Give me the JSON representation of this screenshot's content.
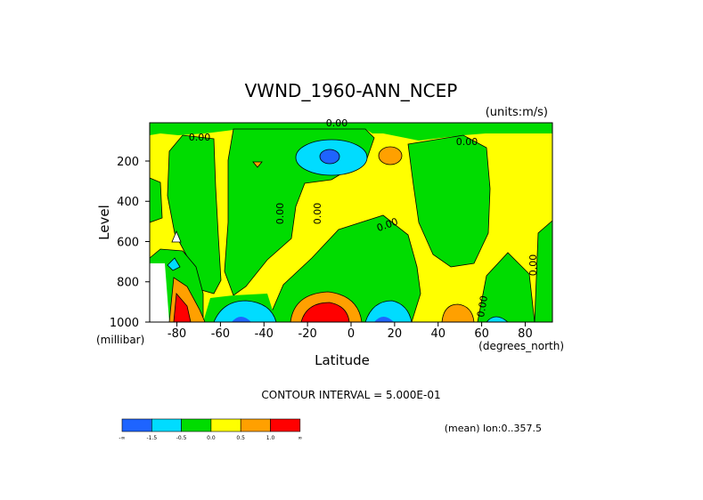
{
  "chart_data": {
    "type": "contour",
    "title": "VWND_1960-ANN_NCEP",
    "units_label": "(units:m/s)",
    "x_label": "Latitude",
    "x_unit_label": "(degrees_north)",
    "y_label": "Level",
    "y_unit_label": "(millibar)",
    "xlim": [
      -92.5,
      92.5
    ],
    "xticks": [
      -80,
      -60,
      -40,
      -20,
      0,
      20,
      40,
      60,
      80
    ],
    "ylim": [
      1000,
      10
    ],
    "yticks": [
      200,
      400,
      600,
      800,
      1000
    ],
    "contour_labels": [
      "0.00",
      "0.00",
      "0.00",
      "0.00",
      "0.00",
      "0.00",
      "0.00",
      "0.00"
    ],
    "contour_interval_label": "CONTOUR INTERVAL = 5.000E-01",
    "colorbar_labels": [
      "-∞",
      "-1.5",
      "-0.5",
      "0.0",
      "0.5",
      "1.0",
      "∞"
    ],
    "colorbar_colors": [
      "#1e64ff",
      "#00dcff",
      "#00dc00",
      "#ffff00",
      "#ffa000",
      "#ff0000"
    ],
    "footnote": "(mean) lon:0..357.5"
  }
}
